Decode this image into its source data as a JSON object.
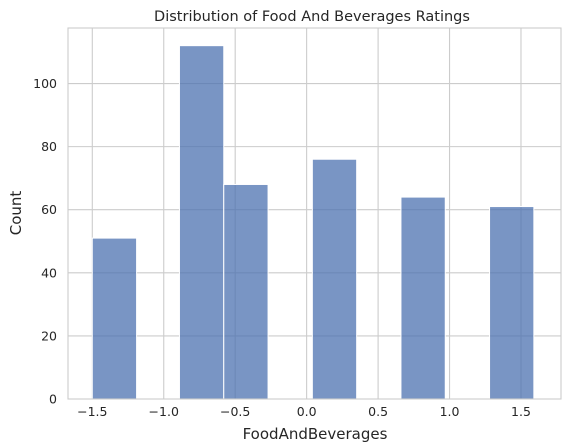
{
  "chart_data": {
    "type": "bar",
    "subtype": "histogram",
    "title": "Distribution of Food And Beverages Ratings",
    "xlabel": "FoodAndBeverages",
    "ylabel": "Count",
    "xlim": [
      -1.67,
      1.78
    ],
    "ylim": [
      0,
      117.6
    ],
    "xticks": [
      -1.5,
      -1.0,
      -0.5,
      0.0,
      0.5,
      1.0,
      1.5
    ],
    "xtick_labels": [
      "−1.5",
      "−1.0",
      "−0.5",
      "0.0",
      "0.5",
      "1.0",
      "1.5"
    ],
    "yticks": [
      0,
      20,
      40,
      60,
      80,
      100
    ],
    "ytick_labels": [
      "0",
      "20",
      "40",
      "60",
      "80",
      "100"
    ],
    "grid": true,
    "bar_color": "#4c72b0",
    "bins": [
      {
        "x0": -1.5,
        "x1": -1.19,
        "count": 51
      },
      {
        "x0": -1.19,
        "x1": -0.89,
        "count": 0
      },
      {
        "x0": -0.89,
        "x1": -0.58,
        "count": 112
      },
      {
        "x0": -0.58,
        "x1": -0.27,
        "count": 68
      },
      {
        "x0": -0.27,
        "x1": 0.04,
        "count": 0
      },
      {
        "x0": 0.04,
        "x1": 0.35,
        "count": 76
      },
      {
        "x0": 0.35,
        "x1": 0.66,
        "count": 0
      },
      {
        "x0": 0.66,
        "x1": 0.97,
        "count": 64
      },
      {
        "x0": 0.97,
        "x1": 1.28,
        "count": 0
      },
      {
        "x0": 1.28,
        "x1": 1.59,
        "count": 61
      }
    ]
  }
}
